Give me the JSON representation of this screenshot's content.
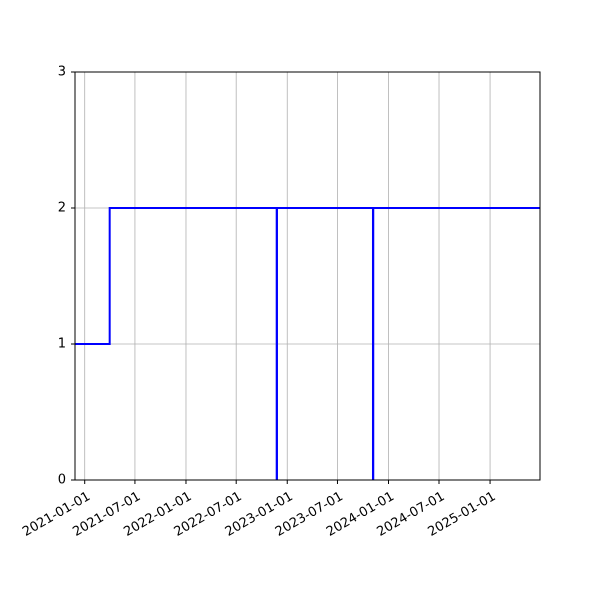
{
  "chart_data": {
    "type": "line",
    "title": "",
    "xlabel": "",
    "ylabel": "",
    "x_is_date": true,
    "xlim": [
      "2020-11-27",
      "2025-06-30"
    ],
    "ylim": [
      0,
      3
    ],
    "grid": true,
    "legend": "none",
    "x_ticks": [
      "2021-01-01",
      "2021-07-01",
      "2022-01-01",
      "2022-07-01",
      "2023-01-01",
      "2023-07-01",
      "2024-01-01",
      "2024-07-01",
      "2025-01-01"
    ],
    "y_ticks": [
      0,
      1,
      2,
      3
    ],
    "series": [
      {
        "color": "#0000ff",
        "step": true,
        "points": [
          {
            "x": "2020-11-27",
            "y": 1
          },
          {
            "x": "2021-04-01",
            "y": 1
          },
          {
            "x": "2021-04-01",
            "y": 2
          },
          {
            "x": "2022-11-24",
            "y": 2
          },
          {
            "x": "2022-11-24",
            "y": 0
          },
          {
            "x": "2022-11-25",
            "y": 0
          },
          {
            "x": "2022-11-25",
            "y": 2
          },
          {
            "x": "2023-11-06",
            "y": 2
          },
          {
            "x": "2023-11-06",
            "y": 0
          },
          {
            "x": "2023-11-07",
            "y": 0
          },
          {
            "x": "2023-11-07",
            "y": 2
          },
          {
            "x": "2025-06-30",
            "y": 2
          }
        ]
      }
    ],
    "colors": {
      "line": "#0000ff",
      "grid": "#b0b0b0",
      "axis": "#000000"
    }
  }
}
